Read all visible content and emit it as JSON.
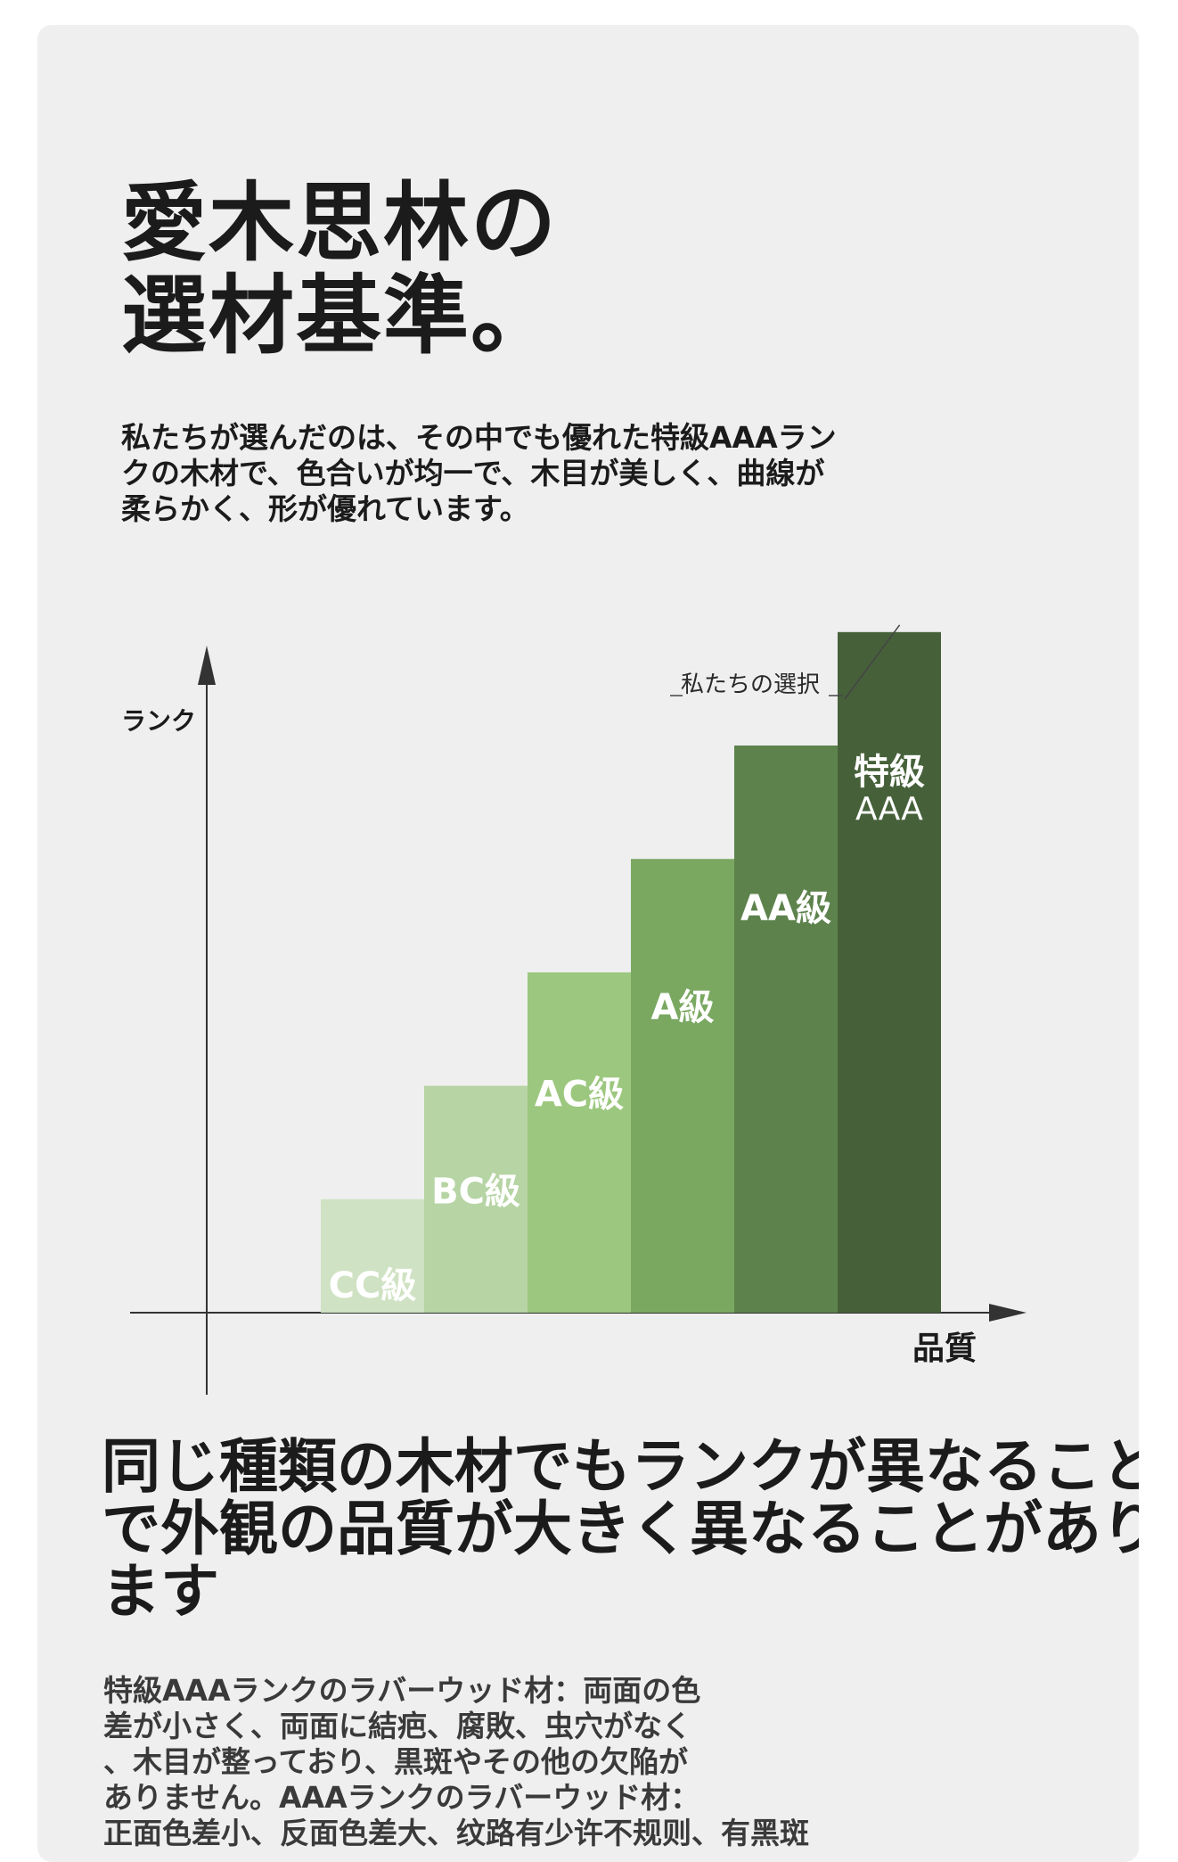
{
  "headline": {
    "line1": "愛木思林の",
    "line2": "選材基準。"
  },
  "intro": {
    "lines": [
      "私たちが選んだのは、その中でも優れた特級AAAラン",
      "クの木材で、色合いが均一で、木目が美しく、曲線が",
      "柔らかく、形が優れています。"
    ]
  },
  "chart_data": {
    "type": "bar",
    "ylabel": "ランク",
    "xlabel": "品質",
    "categories": [
      "CC級",
      "BC級",
      "AC級",
      "A級",
      "AA級",
      "特級AAA"
    ],
    "category_lines": [
      [
        "CC級"
      ],
      [
        "BC級"
      ],
      [
        "AC級"
      ],
      [
        "A級"
      ],
      [
        "AA級"
      ],
      [
        "特級",
        "AAA"
      ]
    ],
    "values": [
      1,
      2,
      3,
      4,
      5,
      6
    ],
    "ylim": [
      0,
      7.5
    ],
    "colors": [
      "#cfe2c3",
      "#b6d4a4",
      "#9cc77e",
      "#7aa861",
      "#5d824c",
      "#46613a"
    ],
    "label_color": "#ffffff",
    "grid": false,
    "legend": "none",
    "annotation": {
      "text": "私たちの選択",
      "target": "特級AAA"
    }
  },
  "section": {
    "title_lines": [
      "同じ種類の木材でもランクが異なること",
      "で外観の品質が大きく異なることがあり",
      "ます"
    ],
    "body_lines": [
      "特級AAAランクのラバーウッド材：両面の色",
      "差が小さく、両面に結疤、腐敗、虫穴がなく",
      "、木目が整っており、黒斑やその他の欠陥が",
      "ありません。AAAランクのラバーウッド材：",
      "正面色差小、反面色差大、纹路有少许不规则、有黑斑"
    ]
  }
}
